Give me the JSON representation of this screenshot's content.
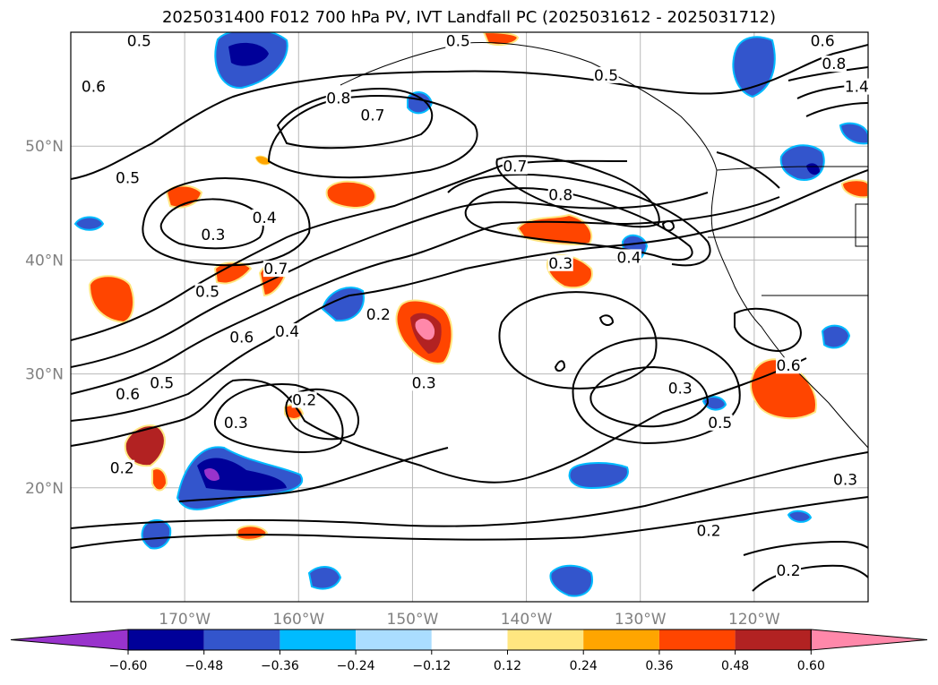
{
  "title": "2025031400 F012 700 hPa PV, IVT Landfall PC (2025031612 - 2025031712)",
  "map": {
    "lon_range": [
      -180,
      -110
    ],
    "lat_range": [
      10,
      60
    ],
    "lat_ticks": [
      {
        "value": 20,
        "label": "20°N"
      },
      {
        "value": 30,
        "label": "30°N"
      },
      {
        "value": 40,
        "label": "40°N"
      },
      {
        "value": 50,
        "label": "50°N"
      }
    ],
    "lon_ticks": [
      {
        "value": -170,
        "label": "170°W"
      },
      {
        "value": -160,
        "label": "160°W"
      },
      {
        "value": -150,
        "label": "150°W"
      },
      {
        "value": -140,
        "label": "140°W"
      },
      {
        "value": -130,
        "label": "130°W"
      },
      {
        "value": -120,
        "label": "120°W"
      }
    ],
    "grid": true,
    "contour_labels": [
      {
        "text": "0.5",
        "lon": -174,
        "lat": 59
      },
      {
        "text": "0.6",
        "lon": -178,
        "lat": 55
      },
      {
        "text": "0.5",
        "lon": -175,
        "lat": 47
      },
      {
        "text": "0.3",
        "lon": -167.5,
        "lat": 42
      },
      {
        "text": "0.4",
        "lon": -163,
        "lat": 43.5
      },
      {
        "text": "0.8",
        "lon": -156.5,
        "lat": 54
      },
      {
        "text": "0.7",
        "lon": -153.5,
        "lat": 52.5
      },
      {
        "text": "0.5",
        "lon": -146,
        "lat": 59
      },
      {
        "text": "0.7",
        "lon": -141,
        "lat": 48
      },
      {
        "text": "0.8",
        "lon": -137,
        "lat": 45.5
      },
      {
        "text": "0.5",
        "lon": -133,
        "lat": 56
      },
      {
        "text": "0.3",
        "lon": -137,
        "lat": 39.5
      },
      {
        "text": "0.4",
        "lon": -131,
        "lat": 40
      },
      {
        "text": "0.5",
        "lon": -168,
        "lat": 37
      },
      {
        "text": "0.7",
        "lon": -162,
        "lat": 39
      },
      {
        "text": "0.6",
        "lon": -165,
        "lat": 33
      },
      {
        "text": "0.4",
        "lon": -161,
        "lat": 33.5
      },
      {
        "text": "0.2",
        "lon": -153,
        "lat": 35
      },
      {
        "text": "0.3",
        "lon": -149,
        "lat": 29
      },
      {
        "text": "0.2",
        "lon": -159.5,
        "lat": 27.5
      },
      {
        "text": "0.3",
        "lon": -165.5,
        "lat": 25.5
      },
      {
        "text": "0.5",
        "lon": -172,
        "lat": 29
      },
      {
        "text": "0.6",
        "lon": -175,
        "lat": 28
      },
      {
        "text": "0.2",
        "lon": -175.5,
        "lat": 21.5
      },
      {
        "text": "0.3",
        "lon": -126.5,
        "lat": 28.5
      },
      {
        "text": "0.5",
        "lon": -123,
        "lat": 25.5
      },
      {
        "text": "0.3",
        "lon": -112,
        "lat": 20.5
      },
      {
        "text": "0.2",
        "lon": -124,
        "lat": 16
      },
      {
        "text": "0.2",
        "lon": -117,
        "lat": 12.5
      },
      {
        "text": "0.6",
        "lon": -117,
        "lat": 30.5
      },
      {
        "text": "0.6",
        "lon": -114,
        "lat": 59
      },
      {
        "text": "0.8",
        "lon": -113,
        "lat": 57
      },
      {
        "text": "1.4",
        "lon": -111,
        "lat": 55
      }
    ]
  },
  "colorbar": {
    "colors": [
      "#9933cc",
      "#000099",
      "#3355cc",
      "#00bbff",
      "#aaddff",
      "#ffffff",
      "#ffe680",
      "#ffa500",
      "#ff4500",
      "#b22222",
      "#ff88aa"
    ],
    "tick_labels": [
      "−0.60",
      "−0.48",
      "−0.36",
      "−0.24",
      "−0.12",
      "0.12",
      "0.24",
      "0.36",
      "0.48",
      "0.60"
    ]
  }
}
